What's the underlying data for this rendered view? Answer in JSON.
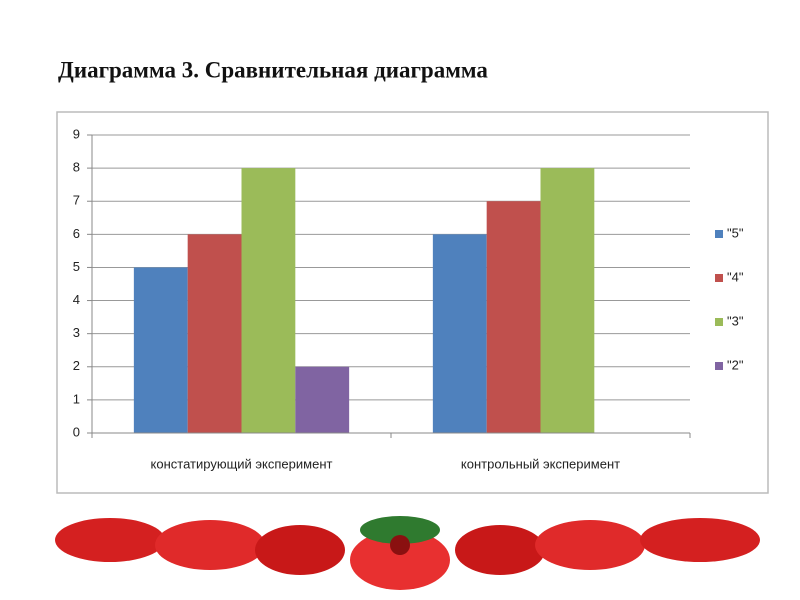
{
  "chart_data": {
    "type": "bar",
    "title": "Диаграмма 3. Сравнительная диаграмма",
    "categories": [
      "констатирующий эксперимент",
      "контрольный эксперимент"
    ],
    "series": [
      {
        "name": "\"5\"",
        "color": "#4f81bd",
        "values": [
          5,
          6
        ]
      },
      {
        "name": "\"4\"",
        "color": "#c0504d",
        "values": [
          6,
          7
        ]
      },
      {
        "name": "\"3\"",
        "color": "#9bbb59",
        "values": [
          8,
          8
        ]
      },
      {
        "name": "\"2\"",
        "color": "#8064a2",
        "values": [
          2,
          0
        ]
      }
    ],
    "ylim": [
      0,
      9
    ],
    "yticks": [
      0,
      1,
      2,
      3,
      4,
      5,
      6,
      7,
      8,
      9
    ],
    "grid": true,
    "legend": "right"
  }
}
